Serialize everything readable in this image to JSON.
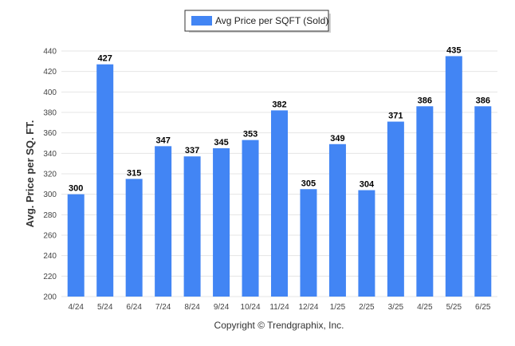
{
  "chart_data": {
    "type": "bar",
    "categories": [
      "4/24",
      "5/24",
      "6/24",
      "7/24",
      "8/24",
      "9/24",
      "10/24",
      "11/24",
      "12/24",
      "1/25",
      "2/25",
      "3/25",
      "4/25",
      "5/25",
      "6/25"
    ],
    "series": [
      {
        "name": "Avg Price per SQFT (Sold)",
        "values": [
          300,
          427,
          315,
          347,
          337,
          345,
          353,
          382,
          305,
          349,
          304,
          371,
          386,
          435,
          386
        ],
        "color": "#4285F4"
      }
    ],
    "ylabel": "Avg. Price per SQ. FT.",
    "xlabel": "",
    "ylim": [
      200,
      440
    ],
    "yticks": [
      200,
      220,
      240,
      260,
      280,
      300,
      320,
      340,
      360,
      380,
      400,
      420,
      440
    ],
    "grid": true,
    "legend": "top-center",
    "credit": "Copyright © Trendgraphix, Inc."
  }
}
